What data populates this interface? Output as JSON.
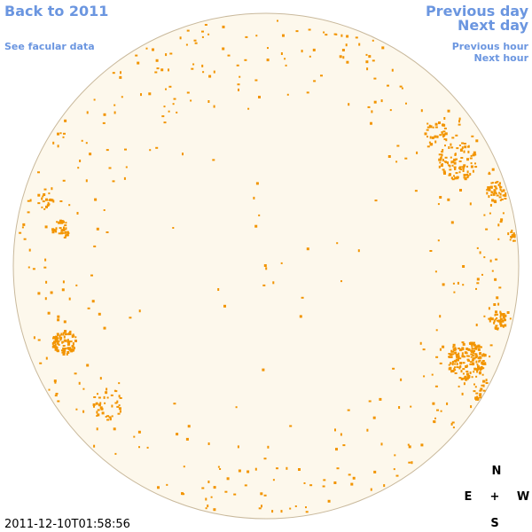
{
  "nav": {
    "back": "Back to 2011",
    "facular": "See facular data",
    "previous_day": "Previous day",
    "next_day": "Next day",
    "previous_hour": "Previous hour",
    "next_hour": "Next hour"
  },
  "compass": {
    "north": "N",
    "east": "E",
    "center": "+",
    "west": "W",
    "south": "S"
  },
  "timestamp": "2011-12-10T01:58:56"
}
